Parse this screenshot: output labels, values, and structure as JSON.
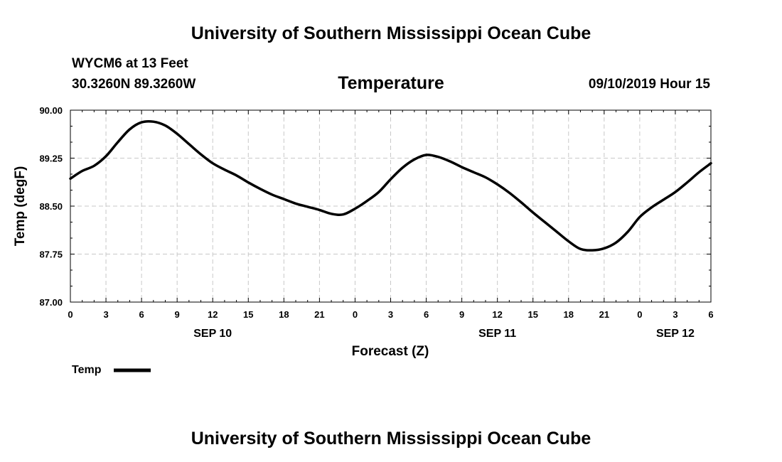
{
  "header": {
    "title": "University of Southern Mississippi Ocean Cube",
    "station": "WYCM6 at 13 Feet",
    "coords": "30.3260N 89.3260W",
    "variable": "Temperature",
    "timestamp": "09/10/2019 Hour 15"
  },
  "footer": {
    "title": "University of Southern Mississippi Ocean Cube"
  },
  "legend": {
    "label": "Temp"
  },
  "colors": {
    "line": "#000000",
    "grid": "#c8c8c8",
    "background": "#ffffff"
  },
  "chart_data": {
    "type": "line",
    "title": "Temperature",
    "xlabel": "Forecast (Z)",
    "ylabel": "Temp (degF)",
    "xlim": [
      0,
      54
    ],
    "ylim": [
      87.0,
      90.0
    ],
    "grid": true,
    "legend_position": "bottom-left",
    "y_ticks": [
      87.0,
      87.75,
      88.5,
      89.25,
      90.0
    ],
    "y_tick_labels": [
      "87.00",
      "87.75",
      "88.50",
      "89.25",
      "90.00"
    ],
    "x_ticks": [
      0,
      3,
      6,
      9,
      12,
      15,
      18,
      21,
      24,
      27,
      30,
      33,
      36,
      39,
      42,
      45,
      48,
      51,
      54
    ],
    "x_tick_labels": [
      "0",
      "3",
      "6",
      "9",
      "12",
      "15",
      "18",
      "21",
      "0",
      "3",
      "6",
      "9",
      "12",
      "15",
      "18",
      "21",
      "0",
      "3",
      "6"
    ],
    "date_labels": [
      {
        "hour": 12,
        "label": "SEP 10"
      },
      {
        "hour": 36,
        "label": "SEP 11"
      },
      {
        "hour": 51,
        "label": "SEP 12"
      }
    ],
    "series": [
      {
        "name": "Temp",
        "x": [
          0,
          1,
          2,
          3,
          4,
          5,
          6,
          7,
          8,
          9,
          10,
          11,
          12,
          13,
          14,
          15,
          16,
          17,
          18,
          19,
          20,
          21,
          22,
          23,
          24,
          25,
          26,
          27,
          28,
          29,
          30,
          31,
          32,
          33,
          34,
          35,
          36,
          37,
          38,
          39,
          40,
          41,
          42,
          43,
          44,
          45,
          46,
          47,
          48,
          49,
          50,
          51,
          52,
          53,
          54
        ],
        "values": [
          88.93,
          89.05,
          89.13,
          89.28,
          89.5,
          89.7,
          89.81,
          89.82,
          89.76,
          89.63,
          89.47,
          89.31,
          89.17,
          89.07,
          88.98,
          88.87,
          88.77,
          88.68,
          88.61,
          88.54,
          88.49,
          88.44,
          88.38,
          88.37,
          88.46,
          88.58,
          88.72,
          88.92,
          89.1,
          89.23,
          89.3,
          89.27,
          89.2,
          89.11,
          89.03,
          88.95,
          88.84,
          88.71,
          88.56,
          88.4,
          88.25,
          88.1,
          87.95,
          87.83,
          87.81,
          87.84,
          87.93,
          88.1,
          88.33,
          88.48,
          88.6,
          88.72,
          88.87,
          89.03,
          89.17
        ]
      }
    ]
  }
}
